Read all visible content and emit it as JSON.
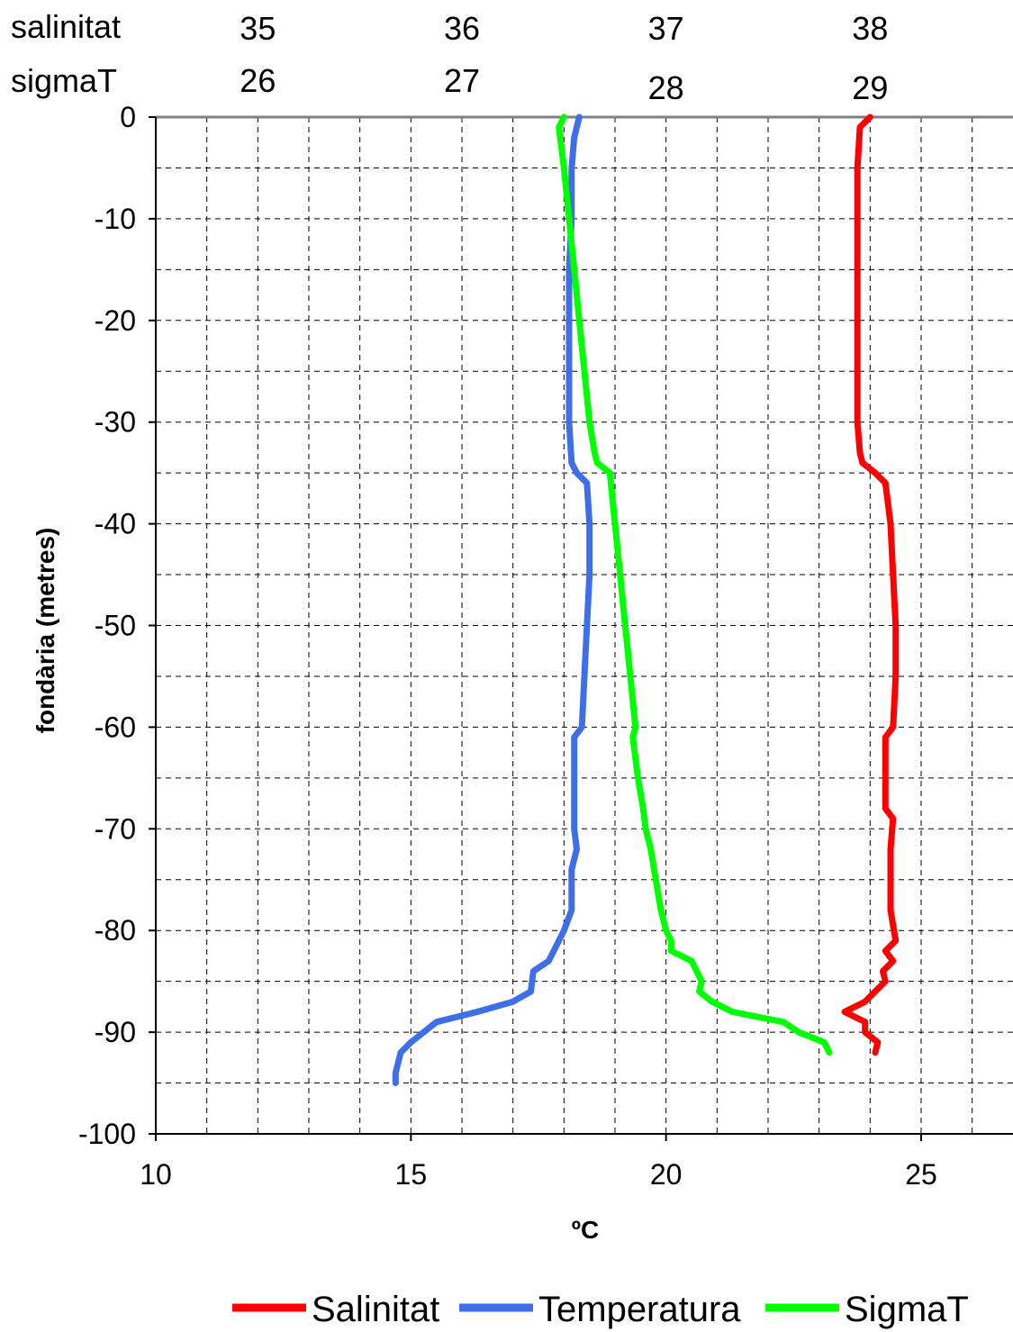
{
  "chart_data": {
    "type": "line",
    "title": "",
    "xlabel": "ºC",
    "ylabel": "fondària (metres)",
    "xlim": [
      10,
      26.8
    ],
    "ylim": [
      -100,
      0
    ],
    "x_ticks": [
      "10",
      "15",
      "20",
      "25"
    ],
    "y_ticks": [
      "0",
      "-10",
      "-20",
      "-30",
      "-40",
      "-50",
      "-60",
      "-70",
      "-80",
      "-90",
      "-100"
    ],
    "grid": true,
    "legend": "bottom",
    "secondary_axes": [
      {
        "label": "salinitat",
        "ticks": [
          {
            "text": "35",
            "x_at": 12.0
          },
          {
            "text": "36",
            "x_at": 16.0
          },
          {
            "text": "37",
            "x_at": 20.0
          },
          {
            "text": "38",
            "x_at": 24.0
          }
        ]
      },
      {
        "label": "sigmaT",
        "ticks": [
          {
            "text": "26",
            "x_at": 12.0
          },
          {
            "text": "27",
            "x_at": 16.0
          },
          {
            "text": "28",
            "x_at": 20.0
          },
          {
            "text": "29",
            "x_at": 24.0
          }
        ]
      }
    ],
    "series": [
      {
        "name": "Salinitat",
        "color": "#ff0000",
        "points": [
          [
            24.0,
            0
          ],
          [
            23.8,
            -1
          ],
          [
            23.75,
            -5
          ],
          [
            23.75,
            -10
          ],
          [
            23.75,
            -15
          ],
          [
            23.75,
            -20
          ],
          [
            23.75,
            -25
          ],
          [
            23.75,
            -30
          ],
          [
            23.8,
            -33
          ],
          [
            23.85,
            -34
          ],
          [
            24.1,
            -35
          ],
          [
            24.3,
            -36
          ],
          [
            24.4,
            -40
          ],
          [
            24.45,
            -45
          ],
          [
            24.5,
            -50
          ],
          [
            24.5,
            -55
          ],
          [
            24.45,
            -60
          ],
          [
            24.3,
            -61
          ],
          [
            24.3,
            -65
          ],
          [
            24.3,
            -68
          ],
          [
            24.45,
            -69
          ],
          [
            24.4,
            -72
          ],
          [
            24.4,
            -78
          ],
          [
            24.5,
            -81
          ],
          [
            24.3,
            -82
          ],
          [
            24.45,
            -83
          ],
          [
            24.25,
            -84
          ],
          [
            24.3,
            -85
          ],
          [
            24.1,
            -86
          ],
          [
            23.9,
            -87
          ],
          [
            23.5,
            -88
          ],
          [
            23.9,
            -89
          ],
          [
            23.9,
            -90
          ],
          [
            24.15,
            -91
          ],
          [
            24.1,
            -92
          ]
        ]
      },
      {
        "name": "Temperatura",
        "color": "#3f6fe8",
        "points": [
          [
            18.3,
            0
          ],
          [
            18.2,
            -2
          ],
          [
            18.15,
            -5
          ],
          [
            18.15,
            -10
          ],
          [
            18.1,
            -15
          ],
          [
            18.1,
            -20
          ],
          [
            18.1,
            -25
          ],
          [
            18.1,
            -30
          ],
          [
            18.15,
            -34
          ],
          [
            18.25,
            -35
          ],
          [
            18.45,
            -36
          ],
          [
            18.5,
            -40
          ],
          [
            18.5,
            -45
          ],
          [
            18.45,
            -50
          ],
          [
            18.4,
            -55
          ],
          [
            18.35,
            -60
          ],
          [
            18.2,
            -61
          ],
          [
            18.2,
            -65
          ],
          [
            18.2,
            -70
          ],
          [
            18.25,
            -72
          ],
          [
            18.15,
            -74
          ],
          [
            18.15,
            -78
          ],
          [
            18.0,
            -80
          ],
          [
            17.9,
            -81
          ],
          [
            17.7,
            -83
          ],
          [
            17.4,
            -84
          ],
          [
            17.35,
            -86
          ],
          [
            17.0,
            -87
          ],
          [
            16.3,
            -88
          ],
          [
            15.5,
            -89
          ],
          [
            15.0,
            -91
          ],
          [
            14.8,
            -92
          ],
          [
            14.7,
            -94
          ],
          [
            14.7,
            -95
          ]
        ]
      },
      {
        "name": "SigmaT",
        "color": "#00ff00",
        "points": [
          [
            18.0,
            0
          ],
          [
            17.9,
            -1
          ],
          [
            18.0,
            -5
          ],
          [
            18.1,
            -10
          ],
          [
            18.2,
            -15
          ],
          [
            18.3,
            -20
          ],
          [
            18.4,
            -25
          ],
          [
            18.5,
            -30
          ],
          [
            18.6,
            -33
          ],
          [
            18.65,
            -34
          ],
          [
            18.9,
            -35
          ],
          [
            19.0,
            -40
          ],
          [
            19.1,
            -45
          ],
          [
            19.2,
            -50
          ],
          [
            19.3,
            -55
          ],
          [
            19.4,
            -60
          ],
          [
            19.35,
            -61
          ],
          [
            19.45,
            -65
          ],
          [
            19.55,
            -68
          ],
          [
            19.6,
            -70
          ],
          [
            19.7,
            -72
          ],
          [
            19.8,
            -75
          ],
          [
            19.9,
            -78
          ],
          [
            20.0,
            -80
          ],
          [
            20.1,
            -81
          ],
          [
            20.1,
            -82
          ],
          [
            20.5,
            -83
          ],
          [
            20.6,
            -84
          ],
          [
            20.7,
            -85
          ],
          [
            20.65,
            -86
          ],
          [
            20.9,
            -87
          ],
          [
            21.3,
            -88
          ],
          [
            22.3,
            -89
          ],
          [
            22.6,
            -90
          ],
          [
            23.1,
            -91
          ],
          [
            23.2,
            -92
          ]
        ]
      }
    ]
  }
}
